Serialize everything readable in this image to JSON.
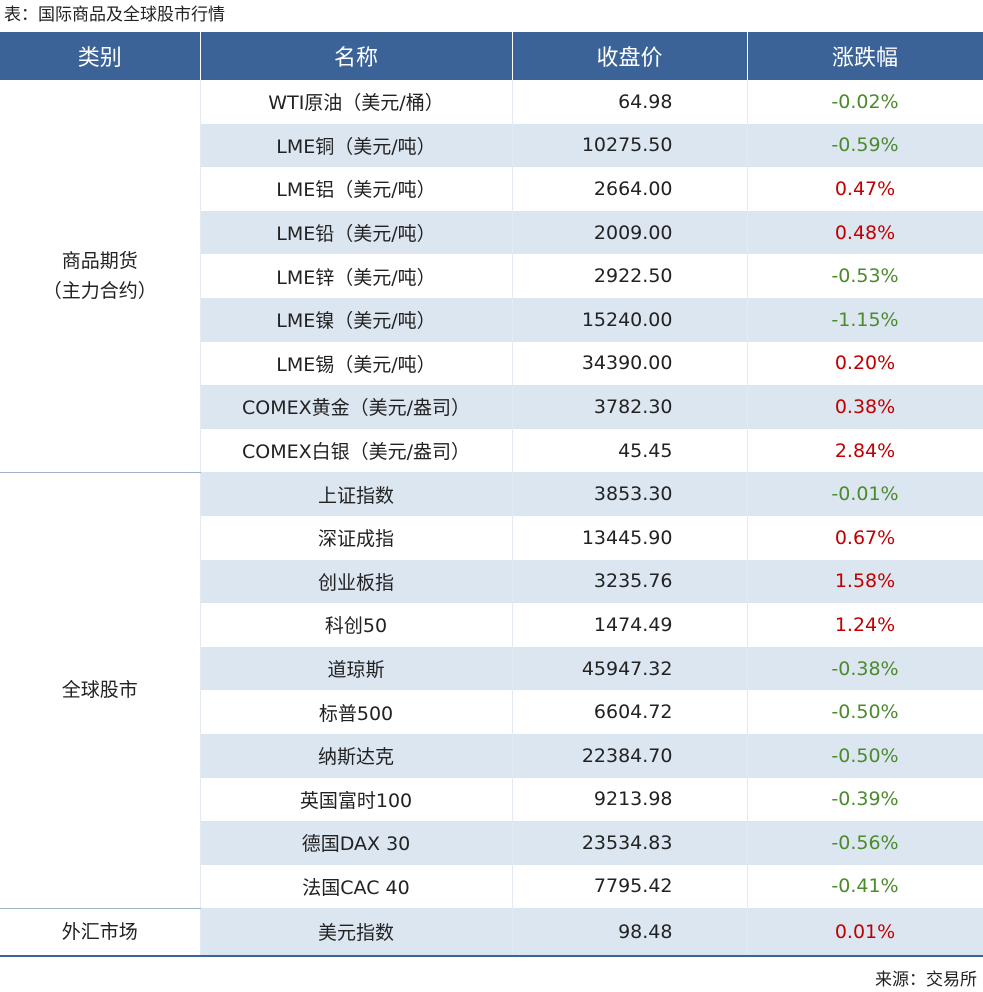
{
  "header": {
    "title": "表：国际商品及全球股市行情"
  },
  "table": {
    "columns": [
      "类别",
      "名称",
      "收盘价",
      "涨跌幅"
    ],
    "groups": [
      {
        "category": [
          "商品期货",
          "（主力合约）"
        ],
        "rows": [
          [
            "WTI原油（美元/桶）",
            "64.98",
            "-0.02%"
          ],
          [
            "LME铜（美元/吨）",
            "10275.50",
            "-0.59%"
          ],
          [
            "LME铝（美元/吨）",
            "2664.00",
            "0.47%"
          ],
          [
            "LME铅（美元/吨）",
            "2009.00",
            "0.48%"
          ],
          [
            "LME锌（美元/吨）",
            "2922.50",
            "-0.53%"
          ],
          [
            "LME镍（美元/吨）",
            "15240.00",
            "-1.15%"
          ],
          [
            "LME锡（美元/吨）",
            "34390.00",
            "0.20%"
          ],
          [
            "COMEX黄金（美元/盎司）",
            "3782.30",
            "0.38%"
          ],
          [
            "COMEX白银（美元/盎司）",
            "45.45",
            "2.84%"
          ]
        ]
      },
      {
        "category": [
          "全球股市"
        ],
        "rows": [
          [
            "上证指数",
            "3853.30",
            "-0.01%"
          ],
          [
            "深证成指",
            "13445.90",
            "0.67%"
          ],
          [
            "创业板指",
            "3235.76",
            "1.58%"
          ],
          [
            "科创50",
            "1474.49",
            "1.24%"
          ],
          [
            "道琼斯",
            "45947.32",
            "-0.38%"
          ],
          [
            "标普500",
            "6604.72",
            "-0.50%"
          ],
          [
            "纳斯达克",
            "22384.70",
            "-0.50%"
          ],
          [
            "英国富时100",
            "9213.98",
            "-0.39%"
          ],
          [
            "德国DAX 30",
            "23534.83",
            "-0.56%"
          ],
          [
            "法国CAC 40",
            "7795.42",
            "-0.41%"
          ]
        ]
      },
      {
        "category": [
          "外汇市场"
        ],
        "rows": [
          [
            "美元指数",
            "98.48",
            "0.01%"
          ]
        ]
      }
    ]
  },
  "footer": {
    "source": "来源：交易所"
  }
}
